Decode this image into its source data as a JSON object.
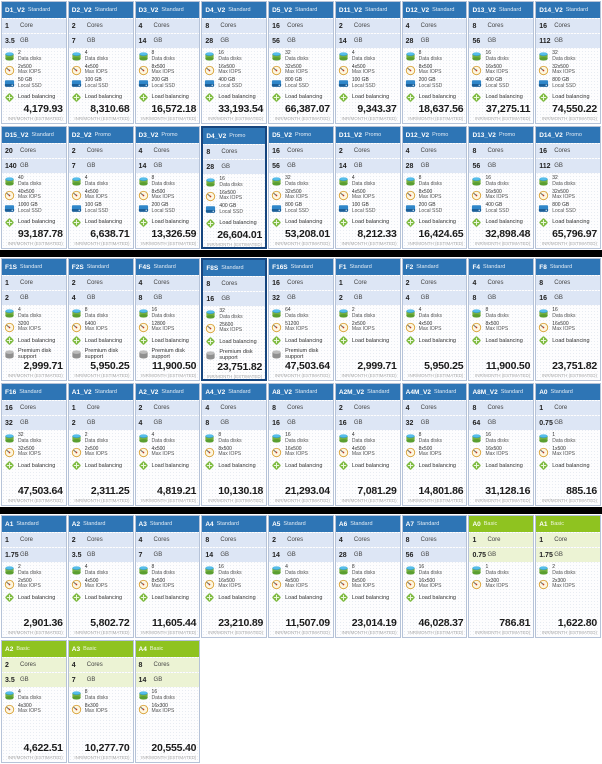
{
  "labels": {
    "core_singular": "Core",
    "core_plural": "Cores",
    "ram_unit": "GB",
    "data_disks": "Data disks",
    "max_iops": "Max IOPS",
    "local_ssd": "Local SSD",
    "load_balancing": "Load balancing",
    "premium_disk": "Premium disk support",
    "price_footer": "INR/MONTH (ESTIMATED)"
  },
  "colors": {
    "standard_header": "#2e75b5",
    "basic_header": "#8fc320",
    "standard_spec_bg": "#dde6f5",
    "basic_spec_bg": "#ecf3d4",
    "selected_border": "#16457e",
    "separator": "#000000"
  },
  "icons": [
    "data-disks-icon",
    "max-iops-icon",
    "local-ssd-icon",
    "load-balancing-icon",
    "premium-disk-icon"
  ],
  "separators_after_rows": [
    1,
    3
  ],
  "rows": [
    [
      {
        "name": "D1_V2",
        "tier": "Standard",
        "cores": "1",
        "ram": "3.5",
        "disks": "2",
        "iops": "2x500",
        "ssd": "50 GB",
        "lb": true,
        "premium": false,
        "price": "4,179.93",
        "selected": false
      },
      {
        "name": "D2_V2",
        "tier": "Standard",
        "cores": "2",
        "ram": "7",
        "disks": "4",
        "iops": "4x500",
        "ssd": "100 GB",
        "lb": true,
        "premium": false,
        "price": "8,310.68",
        "selected": false
      },
      {
        "name": "D3_V2",
        "tier": "Standard",
        "cores": "4",
        "ram": "14",
        "disks": "8",
        "iops": "8x500",
        "ssd": "200 GB",
        "lb": true,
        "premium": false,
        "price": "16,572.18",
        "selected": false
      },
      {
        "name": "D4_V2",
        "tier": "Standard",
        "cores": "8",
        "ram": "28",
        "disks": "16",
        "iops": "16x500",
        "ssd": "400 GB",
        "lb": true,
        "premium": false,
        "price": "33,193.54",
        "selected": false
      },
      {
        "name": "D5_V2",
        "tier": "Standard",
        "cores": "16",
        "ram": "56",
        "disks": "32",
        "iops": "32x500",
        "ssd": "800 GB",
        "lb": true,
        "premium": false,
        "price": "66,387.07",
        "selected": false
      },
      {
        "name": "D11_V2",
        "tier": "Standard",
        "cores": "2",
        "ram": "14",
        "disks": "4",
        "iops": "4x500",
        "ssd": "100 GB",
        "lb": true,
        "premium": false,
        "price": "9,343.37",
        "selected": false
      },
      {
        "name": "D12_V2",
        "tier": "Standard",
        "cores": "4",
        "ram": "28",
        "disks": "8",
        "iops": "8x500",
        "ssd": "200 GB",
        "lb": true,
        "premium": false,
        "price": "18,637.56",
        "selected": false
      },
      {
        "name": "D13_V2",
        "tier": "Standard",
        "cores": "8",
        "ram": "56",
        "disks": "16",
        "iops": "16x500",
        "ssd": "400 GB",
        "lb": true,
        "premium": false,
        "price": "37,275.11",
        "selected": false
      },
      {
        "name": "D14_V2",
        "tier": "Standard",
        "cores": "16",
        "ram": "112",
        "disks": "32",
        "iops": "32x500",
        "ssd": "800 GB",
        "lb": true,
        "premium": false,
        "price": "74,550.22",
        "selected": false
      }
    ],
    [
      {
        "name": "D15_V2",
        "tier": "Standard",
        "cores": "20",
        "ram": "140",
        "disks": "40",
        "iops": "40x500",
        "ssd": "1000 GB",
        "lb": true,
        "premium": false,
        "price": "93,187.78",
        "selected": false
      },
      {
        "name": "D2_V2",
        "tier": "Promo",
        "cores": "2",
        "ram": "7",
        "disks": "4",
        "iops": "4x500",
        "ssd": "100 GB",
        "lb": true,
        "premium": false,
        "price": "6,638.71",
        "selected": false
      },
      {
        "name": "D3_V2",
        "tier": "Promo",
        "cores": "4",
        "ram": "14",
        "disks": "8",
        "iops": "8x500",
        "ssd": "200 GB",
        "lb": true,
        "premium": false,
        "price": "13,326.59",
        "selected": false
      },
      {
        "name": "D4_V2",
        "tier": "Promo",
        "cores": "8",
        "ram": "28",
        "disks": "16",
        "iops": "16x500",
        "ssd": "400 GB",
        "lb": true,
        "premium": false,
        "price": "26,604.01",
        "selected": true
      },
      {
        "name": "D5_V2",
        "tier": "Promo",
        "cores": "16",
        "ram": "56",
        "disks": "32",
        "iops": "32x500",
        "ssd": "800 GB",
        "lb": true,
        "premium": false,
        "price": "53,208.01",
        "selected": false
      },
      {
        "name": "D11_V2",
        "tier": "Promo",
        "cores": "2",
        "ram": "14",
        "disks": "4",
        "iops": "4x500",
        "ssd": "100 GB",
        "lb": true,
        "premium": false,
        "price": "8,212.33",
        "selected": false
      },
      {
        "name": "D12_V2",
        "tier": "Promo",
        "cores": "4",
        "ram": "28",
        "disks": "8",
        "iops": "8x500",
        "ssd": "200 GB",
        "lb": true,
        "premium": false,
        "price": "16,424.65",
        "selected": false
      },
      {
        "name": "D13_V2",
        "tier": "Promo",
        "cores": "8",
        "ram": "56",
        "disks": "16",
        "iops": "16x500",
        "ssd": "400 GB",
        "lb": true,
        "premium": false,
        "price": "32,898.48",
        "selected": false
      },
      {
        "name": "D14_V2",
        "tier": "Promo",
        "cores": "16",
        "ram": "112",
        "disks": "32",
        "iops": "32x500",
        "ssd": "800 GB",
        "lb": true,
        "premium": false,
        "price": "65,796.97",
        "selected": false
      }
    ],
    [
      {
        "name": "F1S",
        "tier": "Standard",
        "cores": "1",
        "ram": "2",
        "disks": "4",
        "iops": "3200",
        "ssd": null,
        "lb": true,
        "premium": true,
        "price": "2,999.71",
        "selected": false
      },
      {
        "name": "F2S",
        "tier": "Standard",
        "cores": "2",
        "ram": "4",
        "disks": "8",
        "iops": "6400",
        "ssd": null,
        "lb": true,
        "premium": true,
        "price": "5,950.25",
        "selected": false
      },
      {
        "name": "F4S",
        "tier": "Standard",
        "cores": "4",
        "ram": "8",
        "disks": "16",
        "iops": "12800",
        "ssd": null,
        "lb": true,
        "premium": true,
        "price": "11,900.50",
        "selected": false
      },
      {
        "name": "F8S",
        "tier": "Standard",
        "cores": "8",
        "ram": "16",
        "disks": "32",
        "iops": "25600",
        "ssd": null,
        "lb": true,
        "premium": true,
        "price": "23,751.82",
        "selected": true
      },
      {
        "name": "F16S",
        "tier": "Standard",
        "cores": "16",
        "ram": "32",
        "disks": "64",
        "iops": "51200",
        "ssd": null,
        "lb": true,
        "premium": true,
        "price": "47,503.64",
        "selected": false
      },
      {
        "name": "F1",
        "tier": "Standard",
        "cores": "1",
        "ram": "2",
        "disks": "2",
        "iops": "2x500",
        "ssd": null,
        "lb": true,
        "premium": false,
        "price": "2,999.71",
        "selected": false
      },
      {
        "name": "F2",
        "tier": "Standard",
        "cores": "2",
        "ram": "4",
        "disks": "4",
        "iops": "4x500",
        "ssd": null,
        "lb": true,
        "premium": false,
        "price": "5,950.25",
        "selected": false
      },
      {
        "name": "F4",
        "tier": "Standard",
        "cores": "4",
        "ram": "8",
        "disks": "8",
        "iops": "8x500",
        "ssd": null,
        "lb": true,
        "premium": false,
        "price": "11,900.50",
        "selected": false
      },
      {
        "name": "F8",
        "tier": "Standard",
        "cores": "8",
        "ram": "16",
        "disks": "16",
        "iops": "16x500",
        "ssd": null,
        "lb": true,
        "premium": false,
        "price": "23,751.82",
        "selected": false
      }
    ],
    [
      {
        "name": "F16",
        "tier": "Standard",
        "cores": "16",
        "ram": "32",
        "disks": "32",
        "iops": "32x500",
        "ssd": null,
        "lb": true,
        "premium": false,
        "price": "47,503.64",
        "selected": false
      },
      {
        "name": "A1_V2",
        "tier": "Standard",
        "cores": "1",
        "ram": "2",
        "disks": "2",
        "iops": "2x500",
        "ssd": null,
        "lb": true,
        "premium": false,
        "price": "2,311.25",
        "selected": false
      },
      {
        "name": "A2_V2",
        "tier": "Standard",
        "cores": "2",
        "ram": "4",
        "disks": "4",
        "iops": "4x500",
        "ssd": null,
        "lb": true,
        "premium": false,
        "price": "4,819.21",
        "selected": false
      },
      {
        "name": "A4_V2",
        "tier": "Standard",
        "cores": "4",
        "ram": "8",
        "disks": "8",
        "iops": "8x500",
        "ssd": null,
        "lb": true,
        "premium": false,
        "price": "10,130.18",
        "selected": false
      },
      {
        "name": "A8_V2",
        "tier": "Standard",
        "cores": "8",
        "ram": "16",
        "disks": "16",
        "iops": "16x500",
        "ssd": null,
        "lb": true,
        "premium": false,
        "price": "21,293.04",
        "selected": false
      },
      {
        "name": "A2M_V2",
        "tier": "Standard",
        "cores": "2",
        "ram": "16",
        "disks": "4",
        "iops": "4x500",
        "ssd": null,
        "lb": true,
        "premium": false,
        "price": "7,081.29",
        "selected": false
      },
      {
        "name": "A4M_V2",
        "tier": "Standard",
        "cores": "4",
        "ram": "32",
        "disks": "8",
        "iops": "8x500",
        "ssd": null,
        "lb": true,
        "premium": false,
        "price": "14,801.86",
        "selected": false
      },
      {
        "name": "A8M_V2",
        "tier": "Standard",
        "cores": "8",
        "ram": "64",
        "disks": "16",
        "iops": "16x500",
        "ssd": null,
        "lb": true,
        "premium": false,
        "price": "31,128.16",
        "selected": false
      },
      {
        "name": "A0",
        "tier": "Standard",
        "cores": "1",
        "ram": "0.75",
        "disks": "1",
        "iops": "1x500",
        "ssd": null,
        "lb": true,
        "premium": false,
        "price": "885.16",
        "selected": false
      }
    ],
    [
      {
        "name": "A1",
        "tier": "Standard",
        "cores": "1",
        "ram": "1.75",
        "disks": "2",
        "iops": "2x500",
        "ssd": null,
        "lb": true,
        "premium": false,
        "price": "2,901.36",
        "selected": false
      },
      {
        "name": "A2",
        "tier": "Standard",
        "cores": "2",
        "ram": "3.5",
        "disks": "4",
        "iops": "4x500",
        "ssd": null,
        "lb": true,
        "premium": false,
        "price": "5,802.72",
        "selected": false
      },
      {
        "name": "A3",
        "tier": "Standard",
        "cores": "4",
        "ram": "7",
        "disks": "8",
        "iops": "8x500",
        "ssd": null,
        "lb": true,
        "premium": false,
        "price": "11,605.44",
        "selected": false
      },
      {
        "name": "A4",
        "tier": "Standard",
        "cores": "8",
        "ram": "14",
        "disks": "16",
        "iops": "16x500",
        "ssd": null,
        "lb": true,
        "premium": false,
        "price": "23,210.89",
        "selected": false
      },
      {
        "name": "A5",
        "tier": "Standard",
        "cores": "2",
        "ram": "14",
        "disks": "4",
        "iops": "4x500",
        "ssd": null,
        "lb": true,
        "premium": false,
        "price": "11,507.09",
        "selected": false
      },
      {
        "name": "A6",
        "tier": "Standard",
        "cores": "4",
        "ram": "28",
        "disks": "8",
        "iops": "8x500",
        "ssd": null,
        "lb": true,
        "premium": false,
        "price": "23,014.19",
        "selected": false
      },
      {
        "name": "A7",
        "tier": "Standard",
        "cores": "8",
        "ram": "56",
        "disks": "16",
        "iops": "16x500",
        "ssd": null,
        "lb": true,
        "premium": false,
        "price": "46,028.37",
        "selected": false
      },
      {
        "name": "A0",
        "tier": "Basic",
        "cores": "1",
        "ram": "0.75",
        "disks": "1",
        "iops": "1x300",
        "ssd": null,
        "lb": false,
        "premium": false,
        "price": "786.81",
        "selected": false
      },
      {
        "name": "A1",
        "tier": "Basic",
        "cores": "1",
        "ram": "1.75",
        "disks": "2",
        "iops": "2x300",
        "ssd": null,
        "lb": false,
        "premium": false,
        "price": "1,622.80",
        "selected": false
      }
    ],
    [
      {
        "name": "A2",
        "tier": "Basic",
        "cores": "2",
        "ram": "3.5",
        "disks": "4",
        "iops": "4x300",
        "ssd": null,
        "lb": false,
        "premium": false,
        "price": "4,622.51",
        "selected": false
      },
      {
        "name": "A3",
        "tier": "Basic",
        "cores": "4",
        "ram": "7",
        "disks": "8",
        "iops": "8x300",
        "ssd": null,
        "lb": false,
        "premium": false,
        "price": "10,277.70",
        "selected": false
      },
      {
        "name": "A4",
        "tier": "Basic",
        "cores": "8",
        "ram": "14",
        "disks": "16",
        "iops": "16x300",
        "ssd": null,
        "lb": false,
        "premium": false,
        "price": "20,555.40",
        "selected": false
      }
    ]
  ]
}
